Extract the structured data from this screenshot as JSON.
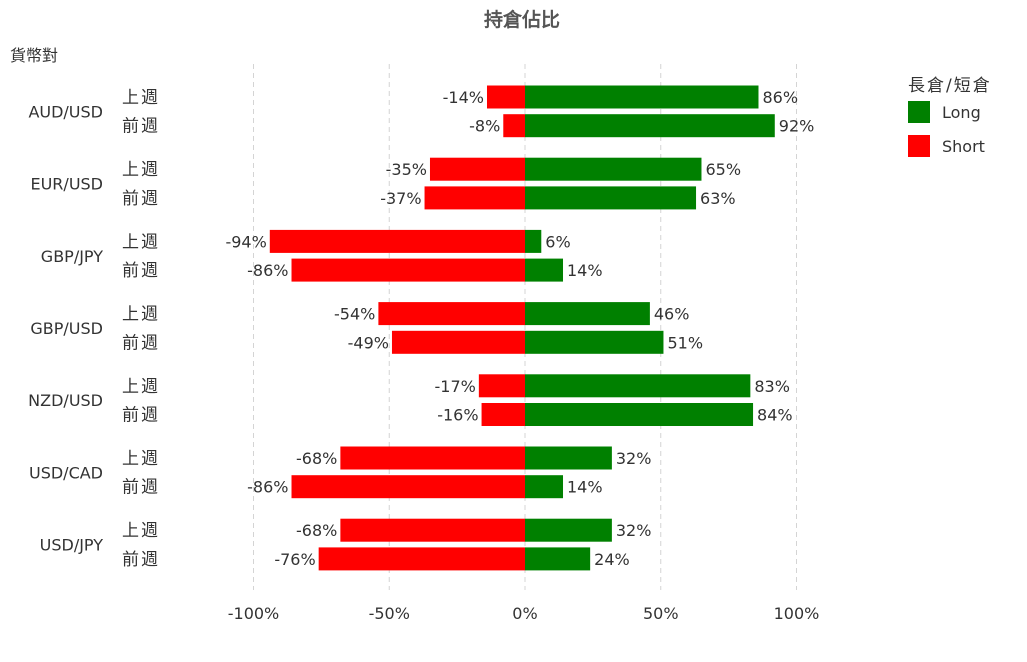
{
  "chart_data": {
    "type": "bar",
    "orientation": "horizontal",
    "stacked": "diverging",
    "title": "持倉佔比",
    "category_axis_title": "貨幣對",
    "categories": [
      "AUD/USD",
      "EUR/USD",
      "GBP/JPY",
      "GBP/USD",
      "NZD/USD",
      "USD/CAD",
      "USD/JPY"
    ],
    "periods": [
      "上週",
      "前週"
    ],
    "series": [
      {
        "name": "Long",
        "color": "#008000",
        "values": [
          [
            86,
            92
          ],
          [
            65,
            63
          ],
          [
            6,
            14
          ],
          [
            46,
            51
          ],
          [
            83,
            84
          ],
          [
            32,
            14
          ],
          [
            32,
            24
          ]
        ],
        "labels": [
          [
            "86%",
            "92%"
          ],
          [
            "65%",
            "63%"
          ],
          [
            "6%",
            "14%"
          ],
          [
            "46%",
            "51%"
          ],
          [
            "83%",
            "84%"
          ],
          [
            "32%",
            "14%"
          ],
          [
            "32%",
            "24%"
          ]
        ]
      },
      {
        "name": "Short",
        "color": "#ff0000",
        "values": [
          [
            -14,
            -8
          ],
          [
            -35,
            -37
          ],
          [
            -94,
            -86
          ],
          [
            -54,
            -49
          ],
          [
            -17,
            -16
          ],
          [
            -68,
            -86
          ],
          [
            -68,
            -76
          ]
        ],
        "labels": [
          [
            "-14%",
            "-8%"
          ],
          [
            "-35%",
            "-37%"
          ],
          [
            "-94%",
            "-86%"
          ],
          [
            "-54%",
            "-49%"
          ],
          [
            "-17%",
            "-16%"
          ],
          [
            "-68%",
            "-86%"
          ],
          [
            "-68%",
            "-76%"
          ]
        ]
      }
    ],
    "xlim": [
      -100,
      100
    ],
    "xticks": [
      -100,
      -50,
      0,
      50,
      100
    ],
    "xtick_labels": [
      "-100%",
      "-50%",
      "0%",
      "50%",
      "100%"
    ],
    "grid": "vertical-dashed",
    "legend": {
      "title": "長倉/短倉",
      "position": "top-right",
      "entries": [
        "Long",
        "Short"
      ]
    }
  }
}
